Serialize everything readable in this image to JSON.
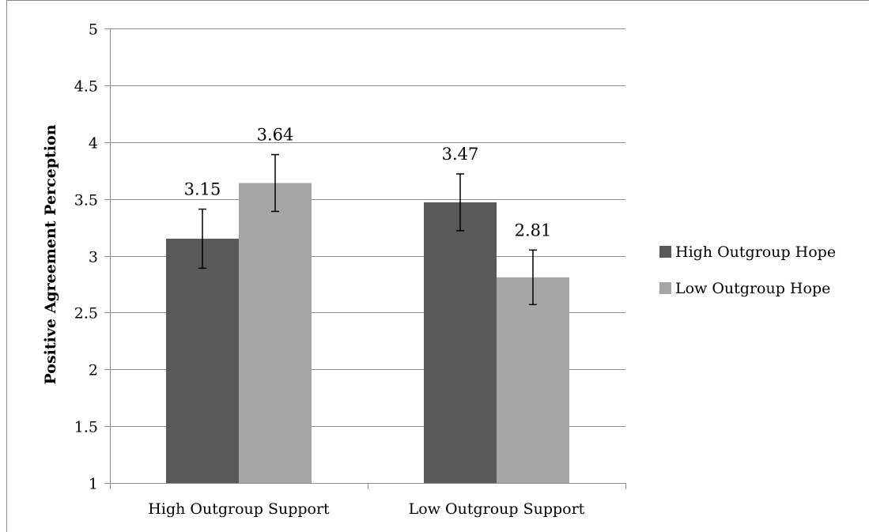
{
  "chart_data": {
    "type": "bar",
    "categories": [
      "High Outgroup Support",
      "Low Outgroup Support"
    ],
    "series": [
      {
        "name": "High Outgroup Hope",
        "values": [
          3.15,
          3.47
        ],
        "error": [
          0.26,
          0.25
        ],
        "color": "#595959"
      },
      {
        "name": "Low Outgroup Hope",
        "values": [
          3.64,
          2.81
        ],
        "error": [
          0.25,
          0.24
        ],
        "color": "#a6a6a6"
      }
    ],
    "value_labels": [
      [
        "3.15",
        "3.47"
      ],
      [
        "3.64",
        "2.81"
      ]
    ],
    "yticks": [
      "1",
      "1.5",
      "2",
      "2.5",
      "3",
      "3.5",
      "4",
      "4.5",
      "5"
    ],
    "ylabel": "Positive Agreement Perception",
    "xlabel": "",
    "title": "",
    "ylim": [
      1,
      5
    ],
    "grid": true,
    "legend_position": "right"
  }
}
